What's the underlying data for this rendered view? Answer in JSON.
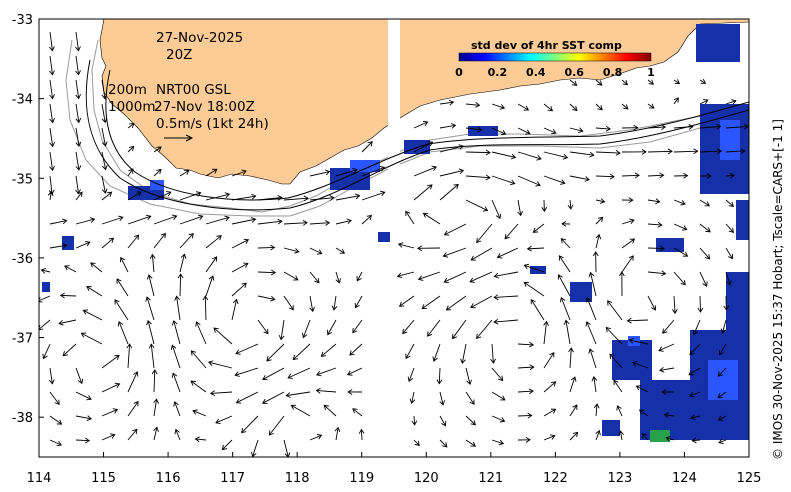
{
  "map": {
    "date": "27-Nov-2025",
    "hour": "20Z",
    "depth_line1": "200m",
    "depth_line2": "1000m",
    "product": "NRT00 GSL",
    "product_time": "27-Nov 18:00Z",
    "scale_label": "0.5m/s (1kt 24h)",
    "credit": "© IMOS 30-Nov-2025 15:37 Hobart; Tscale=CARS+[-1 1]",
    "lon_range": [
      114,
      125
    ],
    "lat_range": [
      -38.5,
      -33
    ],
    "x_ticks": [
      "114",
      "115",
      "116",
      "117",
      "118",
      "119",
      "120",
      "121",
      "122",
      "123",
      "124",
      "125"
    ],
    "y_ticks": [
      "-33",
      "-34",
      "-35",
      "-36",
      "-37",
      "-38"
    ],
    "land_color": "#fdcb96",
    "colorbar": {
      "title": "std dev of 4hr SST comp",
      "ticks": [
        "0",
        "0.2",
        "0.4",
        "0.6",
        "0.8",
        "1"
      ],
      "colormap": "jet"
    }
  }
}
